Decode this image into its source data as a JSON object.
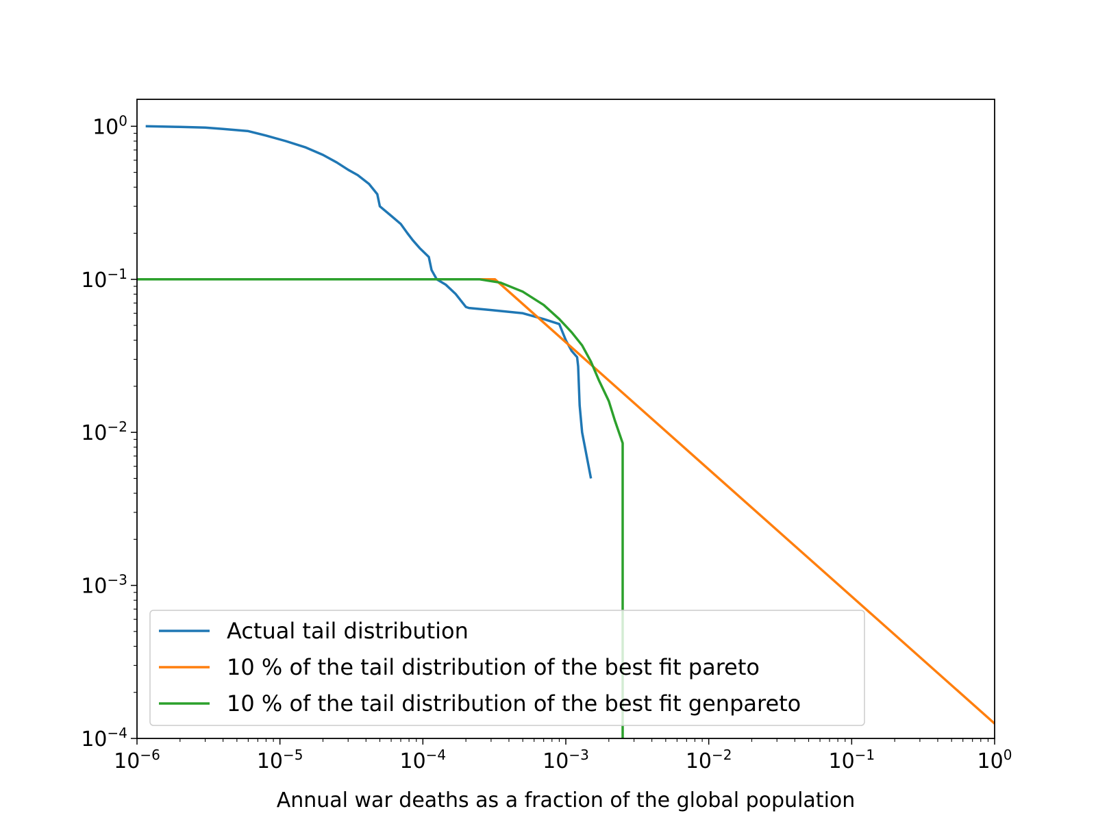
{
  "chart_data": {
    "type": "line",
    "title": "",
    "xlabel": "Annual war deaths as a fraction of the global population",
    "ylabel": "",
    "xscale": "log",
    "yscale": "log",
    "xlim": [
      1e-06,
      1
    ],
    "ylim": [
      0.0001,
      1.5
    ],
    "grid": false,
    "legend_position": "lower-left",
    "x_ticks": [
      {
        "value": 1e-06,
        "base": "10",
        "exp": "−6"
      },
      {
        "value": 1e-05,
        "base": "10",
        "exp": "−5"
      },
      {
        "value": 0.0001,
        "base": "10",
        "exp": "−4"
      },
      {
        "value": 0.001,
        "base": "10",
        "exp": "−3"
      },
      {
        "value": 0.01,
        "base": "10",
        "exp": "−2"
      },
      {
        "value": 0.1,
        "base": "10",
        "exp": "−1"
      },
      {
        "value": 1,
        "base": "10",
        "exp": "0"
      }
    ],
    "y_ticks": [
      {
        "value": 1,
        "base": "10",
        "exp": "0"
      },
      {
        "value": 0.1,
        "base": "10",
        "exp": "−1"
      },
      {
        "value": 0.01,
        "base": "10",
        "exp": "−2"
      },
      {
        "value": 0.001,
        "base": "10",
        "exp": "−3"
      },
      {
        "value": 0.0001,
        "base": "10",
        "exp": "−4"
      }
    ],
    "series": [
      {
        "name": "Actual tail distribution",
        "color": "#1f77b4",
        "x": [
          1.15e-06,
          2e-06,
          3e-06,
          4e-06,
          6e-06,
          8e-06,
          1.1e-05,
          1.5e-05,
          2e-05,
          2.5e-05,
          3e-05,
          3.5e-05,
          4.2e-05,
          4.8e-05,
          5e-05,
          6e-05,
          7e-05,
          7.8e-05,
          8.5e-05,
          9.5e-05,
          0.00011,
          0.000115,
          0.000125,
          0.000145,
          0.00017,
          0.0002,
          0.00021,
          0.0003,
          0.0005,
          0.0007,
          0.0009,
          0.001,
          0.0011,
          0.0012,
          0.00122,
          0.00125,
          0.0013,
          0.0015
        ],
        "y": [
          1.0,
          0.99,
          0.98,
          0.96,
          0.93,
          0.87,
          0.8,
          0.73,
          0.65,
          0.58,
          0.52,
          0.48,
          0.42,
          0.36,
          0.3,
          0.26,
          0.23,
          0.2,
          0.18,
          0.16,
          0.14,
          0.115,
          0.1,
          0.092,
          0.08,
          0.066,
          0.065,
          0.063,
          0.06,
          0.055,
          0.051,
          0.04,
          0.034,
          0.031,
          0.027,
          0.015,
          0.01,
          0.005
        ]
      },
      {
        "name": "10 % of the tail distribution of the best fit pareto",
        "color": "#ff7f0e",
        "x": [
          1e-06,
          0.00032,
          1
        ],
        "y": [
          0.1,
          0.1,
          0.000125
        ]
      },
      {
        "name": "10 % of the tail distribution of the best fit genpareto",
        "color": "#2ca02c",
        "x": [
          1e-06,
          0.00025,
          0.00035,
          0.0005,
          0.0007,
          0.0009,
          0.0011,
          0.0013,
          0.0015,
          0.0017,
          0.002,
          0.0022,
          0.0025,
          0.0025
        ],
        "y": [
          0.1,
          0.1,
          0.095,
          0.083,
          0.068,
          0.055,
          0.045,
          0.037,
          0.029,
          0.022,
          0.016,
          0.012,
          0.0085,
          0.0001
        ]
      }
    ]
  }
}
